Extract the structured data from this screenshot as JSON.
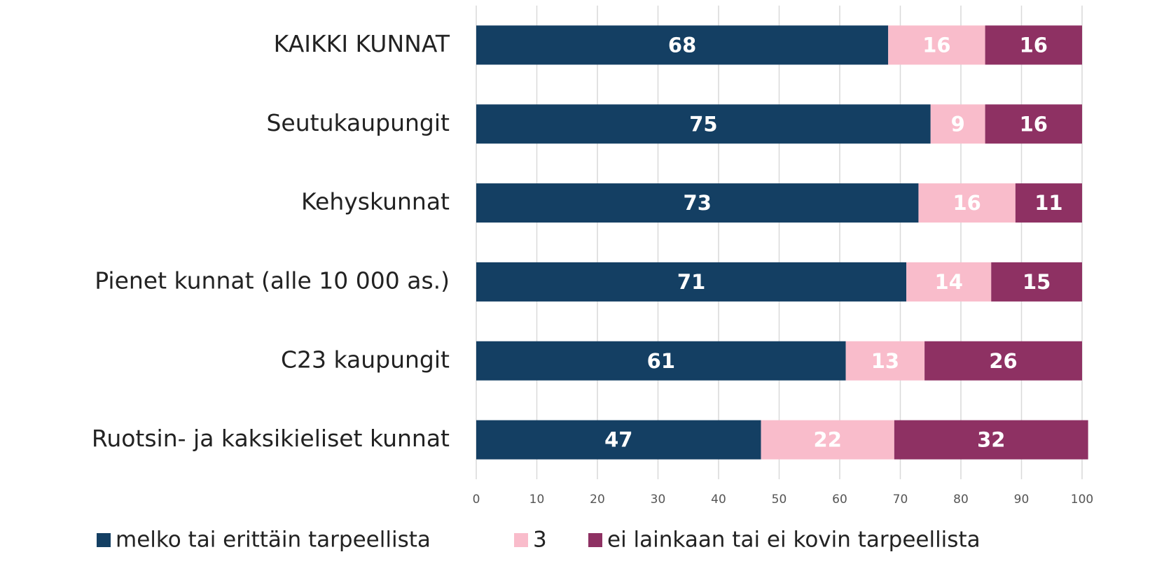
{
  "chart_data": {
    "type": "stacked_barh",
    "categories": [
      "KAIKKI KUNNAT",
      "Seutukaupungit",
      "Kehyskunnat",
      "Pienet kunnat (alle 10 000 as.)",
      "C23 kaupungit",
      "Ruotsin- ja kaksikieliset kunnat"
    ],
    "series": [
      {
        "name": "melko tai erittäin tarpeellista",
        "color": "#143f63",
        "values": [
          68,
          75,
          73,
          71,
          61,
          47
        ]
      },
      {
        "name": "3",
        "color": "#f9bccb",
        "values": [
          16,
          9,
          16,
          14,
          13,
          22
        ]
      },
      {
        "name": "ei lainkaan tai ei kovin tarpeellista",
        "color": "#8e3163",
        "values": [
          16,
          16,
          11,
          15,
          26,
          32
        ]
      }
    ],
    "xlim": [
      0,
      100
    ],
    "xticks": [
      0,
      10,
      20,
      30,
      40,
      50,
      60,
      70,
      80,
      90,
      100
    ],
    "grid": true,
    "legend": "bottom"
  }
}
